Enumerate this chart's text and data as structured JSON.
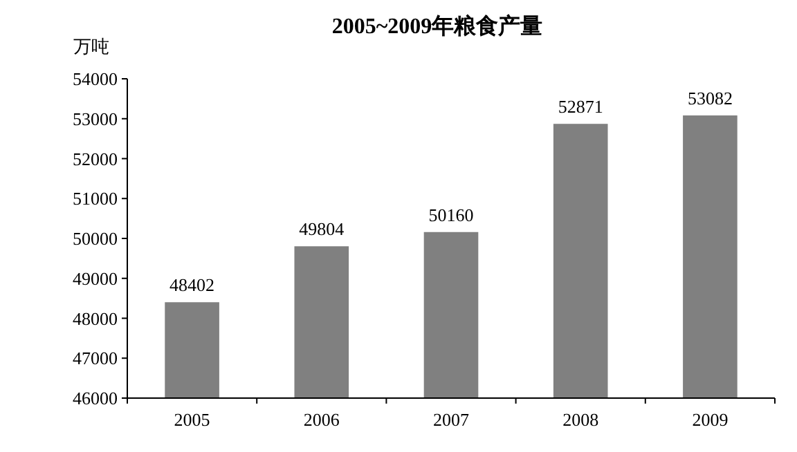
{
  "chart_data": {
    "type": "bar",
    "title": "2005~2009年粮食产量",
    "ylabel": "万吨",
    "categories": [
      "2005",
      "2006",
      "2007",
      "2008",
      "2009"
    ],
    "values": [
      48402,
      49804,
      50160,
      52871,
      53082
    ],
    "color": "#808080",
    "ylim": [
      46000,
      54000
    ],
    "yticks": [
      46000,
      47000,
      48000,
      49000,
      50000,
      51000,
      52000,
      53000,
      54000
    ],
    "data_labels": true
  }
}
